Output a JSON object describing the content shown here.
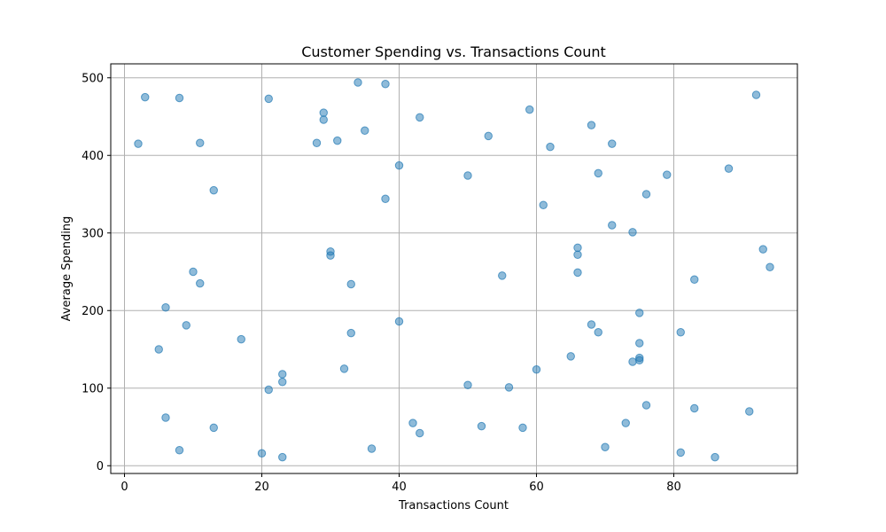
{
  "chart_data": {
    "type": "scatter",
    "title": "Customer Spending vs. Transactions Count",
    "xlabel": "Transactions Count",
    "ylabel": "Average Spending",
    "xlim": [
      -2,
      98
    ],
    "ylim": [
      -10,
      518
    ],
    "xticks": [
      0,
      20,
      40,
      60,
      80
    ],
    "yticks": [
      0,
      100,
      200,
      300,
      400,
      500
    ],
    "grid": true,
    "point_color": "#1f77b4",
    "point_opacity": 0.5,
    "points": [
      {
        "x": 2,
        "y": 415
      },
      {
        "x": 3,
        "y": 475
      },
      {
        "x": 5,
        "y": 150
      },
      {
        "x": 6,
        "y": 204
      },
      {
        "x": 6,
        "y": 62
      },
      {
        "x": 8,
        "y": 474
      },
      {
        "x": 8,
        "y": 20
      },
      {
        "x": 9,
        "y": 181
      },
      {
        "x": 10,
        "y": 250
      },
      {
        "x": 11,
        "y": 416
      },
      {
        "x": 11,
        "y": 235
      },
      {
        "x": 13,
        "y": 355
      },
      {
        "x": 13,
        "y": 49
      },
      {
        "x": 17,
        "y": 163
      },
      {
        "x": 20,
        "y": 16
      },
      {
        "x": 21,
        "y": 473
      },
      {
        "x": 21,
        "y": 98
      },
      {
        "x": 23,
        "y": 118
      },
      {
        "x": 23,
        "y": 108
      },
      {
        "x": 23,
        "y": 11
      },
      {
        "x": 28,
        "y": 416
      },
      {
        "x": 29,
        "y": 455
      },
      {
        "x": 29,
        "y": 446
      },
      {
        "x": 30,
        "y": 276
      },
      {
        "x": 30,
        "y": 271
      },
      {
        "x": 31,
        "y": 419
      },
      {
        "x": 32,
        "y": 125
      },
      {
        "x": 33,
        "y": 234
      },
      {
        "x": 33,
        "y": 171
      },
      {
        "x": 34,
        "y": 494
      },
      {
        "x": 35,
        "y": 432
      },
      {
        "x": 36,
        "y": 22
      },
      {
        "x": 38,
        "y": 492
      },
      {
        "x": 38,
        "y": 344
      },
      {
        "x": 40,
        "y": 387
      },
      {
        "x": 40,
        "y": 186
      },
      {
        "x": 42,
        "y": 55
      },
      {
        "x": 43,
        "y": 449
      },
      {
        "x": 43,
        "y": 42
      },
      {
        "x": 50,
        "y": 374
      },
      {
        "x": 50,
        "y": 104
      },
      {
        "x": 52,
        "y": 51
      },
      {
        "x": 53,
        "y": 425
      },
      {
        "x": 55,
        "y": 245
      },
      {
        "x": 56,
        "y": 101
      },
      {
        "x": 58,
        "y": 49
      },
      {
        "x": 59,
        "y": 459
      },
      {
        "x": 60,
        "y": 124
      },
      {
        "x": 61,
        "y": 336
      },
      {
        "x": 62,
        "y": 411
      },
      {
        "x": 65,
        "y": 141
      },
      {
        "x": 66,
        "y": 281
      },
      {
        "x": 66,
        "y": 272
      },
      {
        "x": 66,
        "y": 249
      },
      {
        "x": 68,
        "y": 439
      },
      {
        "x": 68,
        "y": 182
      },
      {
        "x": 69,
        "y": 377
      },
      {
        "x": 69,
        "y": 172
      },
      {
        "x": 70,
        "y": 24
      },
      {
        "x": 71,
        "y": 415
      },
      {
        "x": 71,
        "y": 310
      },
      {
        "x": 73,
        "y": 55
      },
      {
        "x": 74,
        "y": 301
      },
      {
        "x": 74,
        "y": 134
      },
      {
        "x": 75,
        "y": 197
      },
      {
        "x": 75,
        "y": 158
      },
      {
        "x": 75,
        "y": 139
      },
      {
        "x": 75,
        "y": 136
      },
      {
        "x": 76,
        "y": 350
      },
      {
        "x": 76,
        "y": 78
      },
      {
        "x": 79,
        "y": 375
      },
      {
        "x": 81,
        "y": 172
      },
      {
        "x": 81,
        "y": 17
      },
      {
        "x": 83,
        "y": 240
      },
      {
        "x": 83,
        "y": 74
      },
      {
        "x": 86,
        "y": 11
      },
      {
        "x": 88,
        "y": 383
      },
      {
        "x": 91,
        "y": 70
      },
      {
        "x": 92,
        "y": 478
      },
      {
        "x": 93,
        "y": 279
      },
      {
        "x": 94,
        "y": 256
      }
    ]
  }
}
